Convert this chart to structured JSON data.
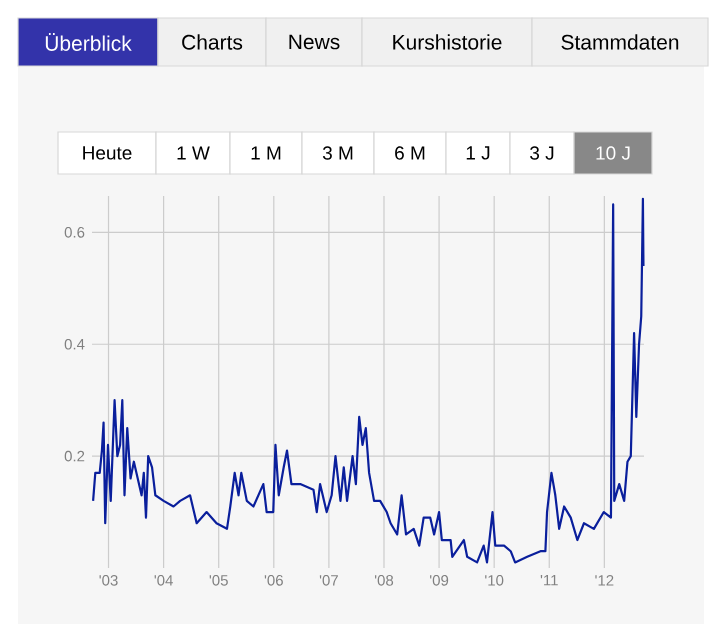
{
  "chart_data": {
    "type": "line",
    "annotations": [
      "Überblick",
      "Charts",
      "News",
      "Kurshistorie",
      "Stammdaten",
      "Heute",
      "1 W",
      "1 M",
      "3 M",
      "6 M",
      "1 J",
      "3 J",
      "10 J"
    ],
    "xlim": [
      2002.7,
      2012.72
    ],
    "ylim": [
      0,
      0.665
    ],
    "xticks": [
      {
        "value": 2003,
        "label": "'03"
      },
      {
        "value": 2004,
        "label": "'04"
      },
      {
        "value": 2005,
        "label": "'05"
      },
      {
        "value": 2006,
        "label": "'06"
      },
      {
        "value": 2007,
        "label": "'07"
      },
      {
        "value": 2008,
        "label": "'08"
      },
      {
        "value": 2009,
        "label": "'09"
      },
      {
        "value": 2010,
        "label": "'10"
      },
      {
        "value": 2011,
        "label": "'11"
      },
      {
        "value": 2012,
        "label": "'12"
      }
    ],
    "yticks": [
      0.2,
      0.4,
      0.6
    ],
    "grid": true,
    "marker": "none",
    "line_style": "solid",
    "series": [
      {
        "color": "#0a1f9c",
        "x": [
          2002.72,
          2002.76,
          2002.84,
          2002.88,
          2002.91,
          2002.94,
          2002.99,
          2003.04,
          2003.11,
          2003.16,
          2003.21,
          2003.25,
          2003.29,
          2003.34,
          2003.4,
          2003.46,
          2003.53,
          2003.6,
          2003.64,
          2003.68,
          2003.72,
          2003.79,
          2003.85,
          2004.0,
          2004.18,
          2004.3,
          2004.48,
          2004.6,
          2004.78,
          2004.96,
          2005.15,
          2005.21,
          2005.29,
          2005.36,
          2005.41,
          2005.51,
          2005.63,
          2005.81,
          2005.87,
          2005.99,
          2006.03,
          2006.09,
          2006.18,
          2006.24,
          2006.32,
          2006.48,
          2006.72,
          2006.78,
          2006.84,
          2006.96,
          2007.05,
          2007.12,
          2007.21,
          2007.27,
          2007.33,
          2007.43,
          2007.49,
          2007.55,
          2007.61,
          2007.67,
          2007.73,
          2007.82,
          2007.93,
          2008.05,
          2008.12,
          2008.24,
          2008.32,
          2008.4,
          2008.54,
          2008.64,
          2008.72,
          2008.84,
          2008.91,
          2009.0,
          2009.05,
          2009.21,
          2009.24,
          2009.45,
          2009.51,
          2009.69,
          2009.81,
          2009.87,
          2009.97,
          2010.02,
          2010.18,
          2010.3,
          2010.38,
          2010.6,
          2010.84,
          2010.93,
          2010.96,
          2011.04,
          2011.11,
          2011.18,
          2011.27,
          2011.39,
          2011.51,
          2011.63,
          2011.81,
          2011.99,
          2012.12,
          2012.16,
          2012.18,
          2012.27,
          2012.36,
          2012.42,
          2012.48,
          2012.54,
          2012.58,
          2012.63,
          2012.67,
          2012.7,
          2012.71
        ],
        "values": [
          0.12,
          0.17,
          0.17,
          0.21,
          0.26,
          0.08,
          0.22,
          0.12,
          0.3,
          0.2,
          0.22,
          0.3,
          0.13,
          0.25,
          0.16,
          0.19,
          0.16,
          0.13,
          0.17,
          0.09,
          0.2,
          0.18,
          0.13,
          0.12,
          0.11,
          0.12,
          0.13,
          0.08,
          0.1,
          0.08,
          0.07,
          0.11,
          0.17,
          0.13,
          0.17,
          0.12,
          0.11,
          0.15,
          0.1,
          0.1,
          0.22,
          0.13,
          0.18,
          0.21,
          0.15,
          0.15,
          0.14,
          0.1,
          0.15,
          0.1,
          0.13,
          0.2,
          0.12,
          0.18,
          0.12,
          0.2,
          0.15,
          0.27,
          0.22,
          0.25,
          0.17,
          0.12,
          0.12,
          0.1,
          0.08,
          0.06,
          0.13,
          0.06,
          0.07,
          0.04,
          0.09,
          0.09,
          0.06,
          0.1,
          0.05,
          0.05,
          0.02,
          0.05,
          0.02,
          0.01,
          0.04,
          0.01,
          0.1,
          0.04,
          0.04,
          0.03,
          0.01,
          0.02,
          0.03,
          0.03,
          0.1,
          0.17,
          0.13,
          0.07,
          0.11,
          0.09,
          0.05,
          0.08,
          0.07,
          0.1,
          0.09,
          0.65,
          0.12,
          0.15,
          0.12,
          0.19,
          0.2,
          0.42,
          0.27,
          0.4,
          0.45,
          0.66,
          0.54
        ]
      }
    ]
  }
}
